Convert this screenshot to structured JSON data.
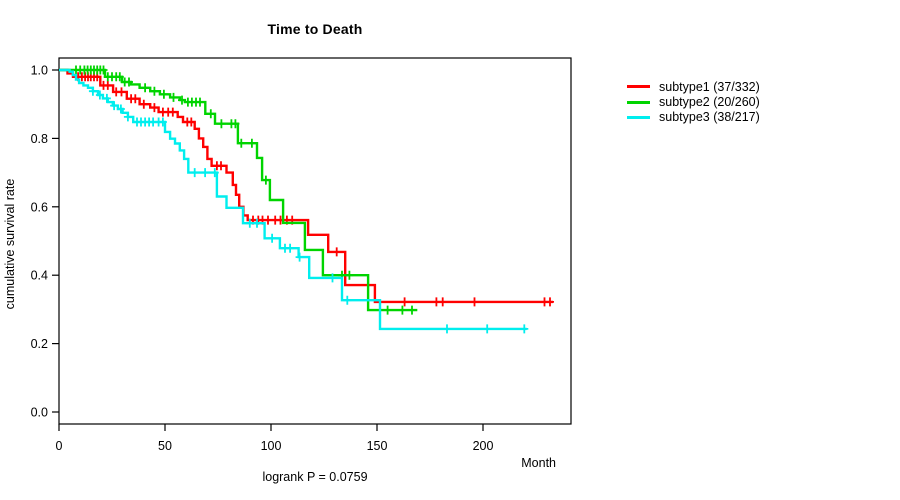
{
  "chart_data": {
    "type": "line",
    "variant": "kaplan-meier-step",
    "title": "Time to Death",
    "xlabel": "Month",
    "ylabel": "cumulative survival rate",
    "annotation": "logrank P = 0.0759",
    "xlim": [
      0,
      241
    ],
    "ylim": [
      0,
      1.0
    ],
    "xticks": [
      0,
      50,
      100,
      150,
      200
    ],
    "xtick_labels": [
      "0",
      "50",
      "100",
      "150",
      "200"
    ],
    "yticks": [
      0.0,
      0.2,
      0.4,
      0.6,
      0.8,
      1.0
    ],
    "ytick_labels": [
      "0.0",
      "0.2",
      "0.4",
      "0.6",
      "0.8",
      "1.0"
    ],
    "grid": false,
    "frame": "box",
    "legend_position": "right",
    "series": [
      {
        "name": "subtype1 (37/332)",
        "color": "#ff0000",
        "end": 233,
        "steps": [
          [
            0,
            1.0
          ],
          [
            4,
            0.99
          ],
          [
            6.6,
            0.98
          ],
          [
            19.5,
            0.955
          ],
          [
            25.5,
            0.936
          ],
          [
            32,
            0.916
          ],
          [
            38,
            0.9
          ],
          [
            43,
            0.89
          ],
          [
            47,
            0.877
          ],
          [
            56,
            0.863
          ],
          [
            58.5,
            0.848
          ],
          [
            64,
            0.828
          ],
          [
            66,
            0.8
          ],
          [
            68,
            0.775
          ],
          [
            70,
            0.74
          ],
          [
            72,
            0.72
          ],
          [
            79,
            0.7
          ],
          [
            82,
            0.664
          ],
          [
            83.5,
            0.635
          ],
          [
            85,
            0.6
          ],
          [
            87,
            0.575
          ],
          [
            89,
            0.561
          ],
          [
            117.5,
            0.518
          ],
          [
            127,
            0.468
          ],
          [
            135,
            0.371
          ],
          [
            149,
            0.322
          ]
        ],
        "censors": [
          9,
          10.8,
          12.3,
          13.7,
          15,
          16.5,
          18,
          21,
          23,
          27,
          29.5,
          34,
          36,
          40,
          45,
          49,
          51.5,
          53.7,
          60.5,
          62.4,
          74.5,
          76.4,
          91.5,
          94,
          96,
          98.6,
          102,
          104.5,
          107.5,
          110,
          131,
          163,
          178,
          181,
          196,
          229,
          231.6
        ]
      },
      {
        "name": "subtype2 (20/260)",
        "color": "#00d400",
        "end": 169,
        "steps": [
          [
            0,
            1.0
          ],
          [
            21.7,
            0.98
          ],
          [
            29.7,
            0.965
          ],
          [
            34,
            0.958
          ],
          [
            38,
            0.948
          ],
          [
            43,
            0.938
          ],
          [
            47.6,
            0.929
          ],
          [
            52.4,
            0.92
          ],
          [
            57,
            0.912
          ],
          [
            59.4,
            0.906
          ],
          [
            69,
            0.872
          ],
          [
            73.6,
            0.843
          ],
          [
            84.4,
            0.786
          ],
          [
            93.4,
            0.743
          ],
          [
            95.8,
            0.678
          ],
          [
            99.5,
            0.62
          ],
          [
            105.7,
            0.553
          ],
          [
            116,
            0.474
          ],
          [
            124.5,
            0.4
          ],
          [
            145.8,
            0.298
          ]
        ],
        "censors": [
          8,
          10,
          12,
          13.5,
          15,
          16.5,
          18,
          19.5,
          21,
          23,
          25,
          27,
          28.7,
          31,
          33,
          40.6,
          45,
          49.5,
          54,
          58,
          60.8,
          62.7,
          64.6,
          66.5,
          71.6,
          76.6,
          81.3,
          83.2,
          86,
          91,
          97.6,
          133.5,
          137,
          155,
          162,
          166.5
        ]
      },
      {
        "name": "subtype3 (38/217)",
        "color": "#00eeee",
        "end": 220.6,
        "steps": [
          [
            0,
            1.0
          ],
          [
            5,
            0.995
          ],
          [
            6.5,
            0.985
          ],
          [
            8,
            0.972
          ],
          [
            9.5,
            0.962
          ],
          [
            11.5,
            0.955
          ],
          [
            13.7,
            0.948
          ],
          [
            16,
            0.938
          ],
          [
            18.4,
            0.927
          ],
          [
            20.7,
            0.917
          ],
          [
            23,
            0.906
          ],
          [
            25.4,
            0.896
          ],
          [
            27.8,
            0.886
          ],
          [
            30,
            0.875
          ],
          [
            32.5,
            0.863
          ],
          [
            35,
            0.848
          ],
          [
            50,
            0.819
          ],
          [
            52.4,
            0.799
          ],
          [
            54.7,
            0.785
          ],
          [
            57,
            0.765
          ],
          [
            59,
            0.74
          ],
          [
            61,
            0.7
          ],
          [
            74.5,
            0.63
          ],
          [
            79,
            0.597
          ],
          [
            86.8,
            0.552
          ],
          [
            97,
            0.508
          ],
          [
            104.2,
            0.479
          ],
          [
            113,
            0.453
          ],
          [
            118,
            0.392
          ],
          [
            133.5,
            0.327
          ],
          [
            151.4,
            0.243
          ]
        ],
        "censors": [
          16,
          19.3,
          22.6,
          26,
          29.2,
          32.5,
          36.8,
          38.7,
          40.6,
          42.5,
          44.4,
          47,
          49,
          64,
          68.9,
          73.5,
          90,
          93.4,
          100.5,
          106.6,
          109,
          113.5,
          129,
          136,
          183,
          202,
          219.5
        ]
      }
    ]
  }
}
